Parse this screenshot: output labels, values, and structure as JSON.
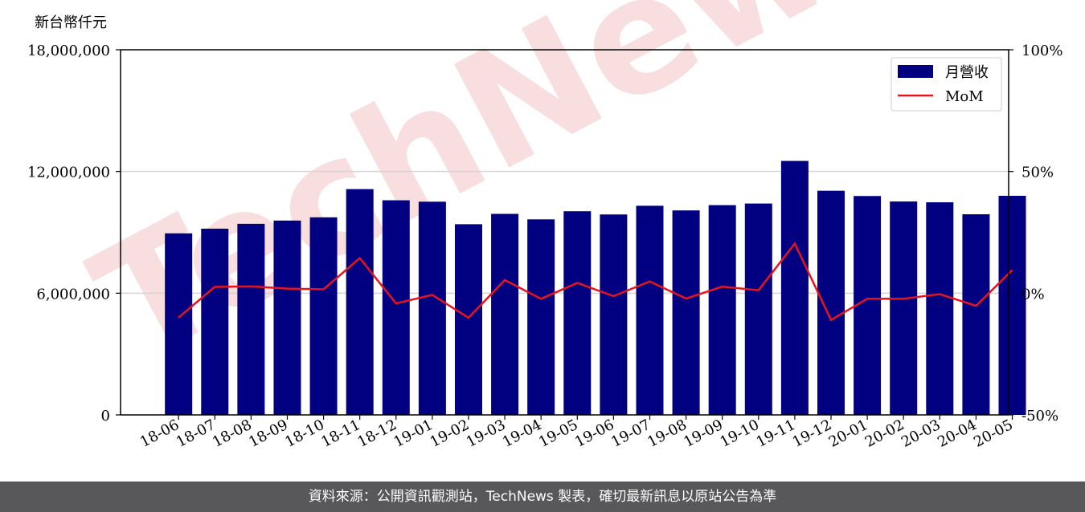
{
  "unit_label": "新台幣仟元",
  "footer_text": "資料來源：公開資訊觀測站，TechNews 製表，確切最新訊息以原站公告為準",
  "watermark_text": "TechNews",
  "colors": {
    "bar": "#000080",
    "line": "#e8141c",
    "grid": "#d4d4d4",
    "footer_bg": "#58585a",
    "watermark": "#f6d4d4"
  },
  "chart_data": {
    "type": "bar",
    "categories": [
      "18-06",
      "18-07",
      "18-08",
      "18-09",
      "18-10",
      "18-11",
      "18-12",
      "19-01",
      "19-02",
      "19-03",
      "19-04",
      "19-05",
      "19-06",
      "19-07",
      "19-08",
      "19-09",
      "19-10",
      "19-11",
      "19-12",
      "20-01",
      "20-02",
      "20-03",
      "20-04",
      "20-05"
    ],
    "series": [
      {
        "name": "月營收",
        "type": "bar",
        "axis": "left",
        "values": [
          8950000,
          9180000,
          9420000,
          9580000,
          9740000,
          11130000,
          10580000,
          10510000,
          9400000,
          9910000,
          9640000,
          10040000,
          9880000,
          10310000,
          10080000,
          10340000,
          10420000,
          12520000,
          11050000,
          10790000,
          10520000,
          10480000,
          9890000,
          10800000
        ]
      },
      {
        "name": "MoM",
        "type": "line",
        "axis": "right",
        "values": [
          -10,
          2.6,
          2.8,
          1.9,
          1.6,
          14.4,
          -4.2,
          -0.7,
          -10.1,
          5.4,
          -2.3,
          4.2,
          -1.2,
          4.8,
          -2.2,
          2.7,
          1.2,
          20.4,
          -11.0,
          -2.3,
          -2.3,
          -0.4,
          -5.2,
          9.5
        ]
      }
    ],
    "y_left": {
      "ticks": [
        "0",
        "6,000,000",
        "12,000,000",
        "18,000,000"
      ],
      "lim": [
        0,
        18000000
      ]
    },
    "y_right": {
      "ticks": [
        "-50%",
        "0%",
        "50%",
        "100%"
      ],
      "lim": [
        -50,
        100
      ]
    },
    "grid": "horizontal",
    "legend": "top-right"
  }
}
